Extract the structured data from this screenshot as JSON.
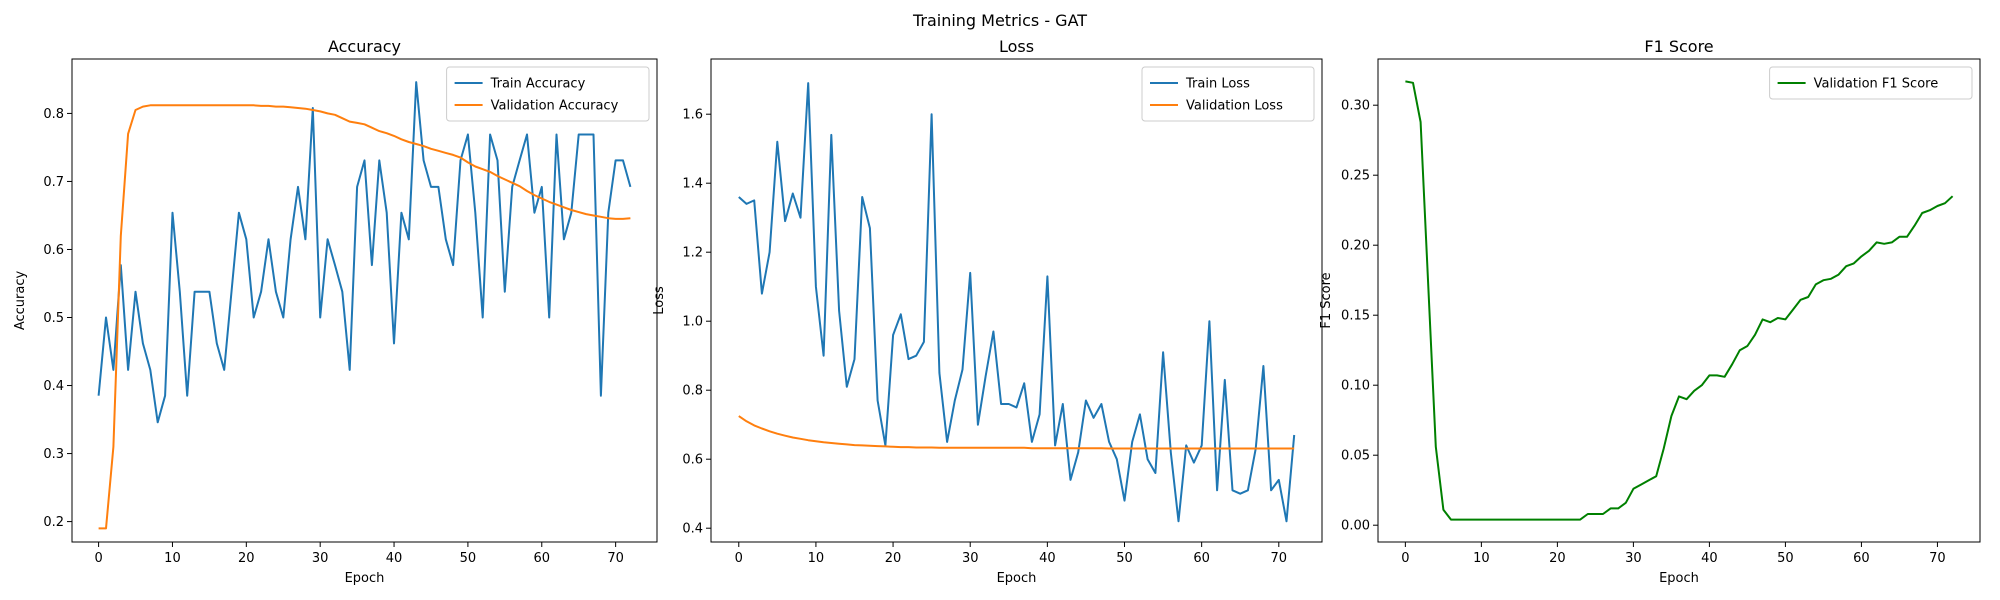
{
  "figure": {
    "suptitle": "Training Metrics - GAT"
  },
  "colors": {
    "train": "#1f77b4",
    "validation": "#ff7f0e",
    "f1": "#008000",
    "axes": "#000000"
  },
  "chart_data": [
    {
      "type": "line",
      "title": "Accuracy",
      "xlabel": "Epoch",
      "ylabel": "Accuracy",
      "xlim": [
        -3.6,
        75.6
      ],
      "ylim": [
        0.17,
        0.88
      ],
      "xticks": [
        0,
        10,
        20,
        30,
        40,
        50,
        60,
        70
      ],
      "yticks": [
        0.2,
        0.3,
        0.4,
        0.5,
        0.6,
        0.7,
        0.8
      ],
      "grid": false,
      "legend": "top-right",
      "series": [
        {
          "name": "Train Accuracy",
          "color": "#1f77b4",
          "y": [
            0.385,
            0.5,
            0.423,
            0.577,
            0.423,
            0.538,
            0.462,
            0.423,
            0.346,
            0.385,
            0.654,
            0.538,
            0.385,
            0.538,
            0.538,
            0.538,
            0.462,
            0.423,
            0.538,
            0.654,
            0.615,
            0.5,
            0.538,
            0.615,
            0.538,
            0.5,
            0.615,
            0.692,
            0.615,
            0.808,
            0.5,
            0.615,
            0.577,
            0.538,
            0.423,
            0.692,
            0.731,
            0.577,
            0.731,
            0.654,
            0.462,
            0.654,
            0.615,
            0.846,
            0.731,
            0.692,
            0.692,
            0.615,
            0.577,
            0.731,
            0.769,
            0.654,
            0.5,
            0.769,
            0.731,
            0.538,
            0.692,
            0.731,
            0.769,
            0.654,
            0.692,
            0.5,
            0.769,
            0.615,
            0.654,
            0.769,
            0.769,
            0.769,
            0.385,
            0.654,
            0.731,
            0.731,
            0.692
          ]
        },
        {
          "name": "Validation Accuracy",
          "color": "#ff7f0e",
          "y": [
            0.19,
            0.19,
            0.31,
            0.62,
            0.77,
            0.805,
            0.81,
            0.812,
            0.812,
            0.812,
            0.812,
            0.812,
            0.812,
            0.812,
            0.812,
            0.812,
            0.812,
            0.812,
            0.812,
            0.812,
            0.812,
            0.812,
            0.811,
            0.811,
            0.81,
            0.81,
            0.809,
            0.808,
            0.807,
            0.805,
            0.803,
            0.8,
            0.798,
            0.793,
            0.788,
            0.786,
            0.784,
            0.779,
            0.774,
            0.771,
            0.767,
            0.762,
            0.758,
            0.755,
            0.752,
            0.748,
            0.745,
            0.742,
            0.739,
            0.735,
            0.728,
            0.722,
            0.718,
            0.714,
            0.708,
            0.703,
            0.698,
            0.693,
            0.686,
            0.68,
            0.675,
            0.67,
            0.666,
            0.662,
            0.658,
            0.655,
            0.652,
            0.65,
            0.648,
            0.646,
            0.645,
            0.645,
            0.646
          ]
        }
      ]
    },
    {
      "type": "line",
      "title": "Loss",
      "xlabel": "Epoch",
      "ylabel": "Loss",
      "xlim": [
        -3.6,
        75.6
      ],
      "ylim": [
        0.36,
        1.76
      ],
      "xticks": [
        0,
        10,
        20,
        30,
        40,
        50,
        60,
        70
      ],
      "yticks": [
        0.4,
        0.6,
        0.8,
        1.0,
        1.2,
        1.4,
        1.6
      ],
      "grid": false,
      "legend": "top-right",
      "series": [
        {
          "name": "Train Loss",
          "color": "#1f77b4",
          "y": [
            1.36,
            1.34,
            1.35,
            1.08,
            1.2,
            1.52,
            1.29,
            1.37,
            1.3,
            1.69,
            1.1,
            0.9,
            1.54,
            1.03,
            0.81,
            0.89,
            1.36,
            1.27,
            0.77,
            0.64,
            0.96,
            1.02,
            0.89,
            0.9,
            0.94,
            1.6,
            0.85,
            0.65,
            0.77,
            0.86,
            1.14,
            0.7,
            0.84,
            0.97,
            0.76,
            0.76,
            0.75,
            0.82,
            0.65,
            0.73,
            1.13,
            0.64,
            0.76,
            0.54,
            0.62,
            0.77,
            0.72,
            0.76,
            0.65,
            0.6,
            0.48,
            0.65,
            0.73,
            0.6,
            0.56,
            0.91,
            0.62,
            0.42,
            0.64,
            0.59,
            0.64,
            1.0,
            0.51,
            0.83,
            0.51,
            0.5,
            0.51,
            0.63,
            0.87,
            0.51,
            0.54,
            0.42,
            0.67
          ]
        },
        {
          "name": "Validation Loss",
          "color": "#ff7f0e",
          "y": [
            0.725,
            0.71,
            0.698,
            0.689,
            0.681,
            0.674,
            0.668,
            0.663,
            0.659,
            0.655,
            0.652,
            0.649,
            0.647,
            0.645,
            0.643,
            0.641,
            0.64,
            0.639,
            0.638,
            0.637,
            0.636,
            0.635,
            0.635,
            0.634,
            0.634,
            0.634,
            0.633,
            0.633,
            0.633,
            0.633,
            0.633,
            0.633,
            0.633,
            0.633,
            0.633,
            0.633,
            0.633,
            0.633,
            0.632,
            0.632,
            0.632,
            0.632,
            0.632,
            0.632,
            0.632,
            0.632,
            0.632,
            0.632,
            0.631,
            0.631,
            0.631,
            0.631,
            0.631,
            0.631,
            0.631,
            0.631,
            0.631,
            0.631,
            0.631,
            0.631,
            0.631,
            0.631,
            0.631,
            0.631,
            0.631,
            0.631,
            0.631,
            0.631,
            0.631,
            0.631,
            0.631,
            0.631,
            0.631
          ]
        }
      ]
    },
    {
      "type": "line",
      "title": "F1 Score",
      "xlabel": "Epoch",
      "ylabel": "F1 Score",
      "xlim": [
        -3.6,
        75.6
      ],
      "ylim": [
        -0.012,
        0.333
      ],
      "xticks": [
        0,
        10,
        20,
        30,
        40,
        50,
        60,
        70
      ],
      "yticks": [
        0.0,
        0.05,
        0.1,
        0.15,
        0.2,
        0.25,
        0.3
      ],
      "grid": false,
      "legend": "top-right",
      "series": [
        {
          "name": "Validation F1 Score",
          "color": "#008000",
          "y": [
            0.317,
            0.316,
            0.288,
            0.172,
            0.056,
            0.011,
            0.004,
            0.004,
            0.004,
            0.004,
            0.004,
            0.004,
            0.004,
            0.004,
            0.004,
            0.004,
            0.004,
            0.004,
            0.004,
            0.004,
            0.004,
            0.004,
            0.004,
            0.004,
            0.008,
            0.008,
            0.008,
            0.012,
            0.012,
            0.016,
            0.026,
            0.029,
            0.032,
            0.035,
            0.055,
            0.078,
            0.092,
            0.09,
            0.096,
            0.1,
            0.107,
            0.107,
            0.106,
            0.115,
            0.125,
            0.128,
            0.136,
            0.147,
            0.145,
            0.148,
            0.147,
            0.154,
            0.161,
            0.163,
            0.172,
            0.175,
            0.176,
            0.179,
            0.185,
            0.187,
            0.192,
            0.196,
            0.202,
            0.201,
            0.202,
            0.206,
            0.206,
            0.214,
            0.223,
            0.225,
            0.228,
            0.23,
            0.235
          ]
        }
      ]
    }
  ]
}
